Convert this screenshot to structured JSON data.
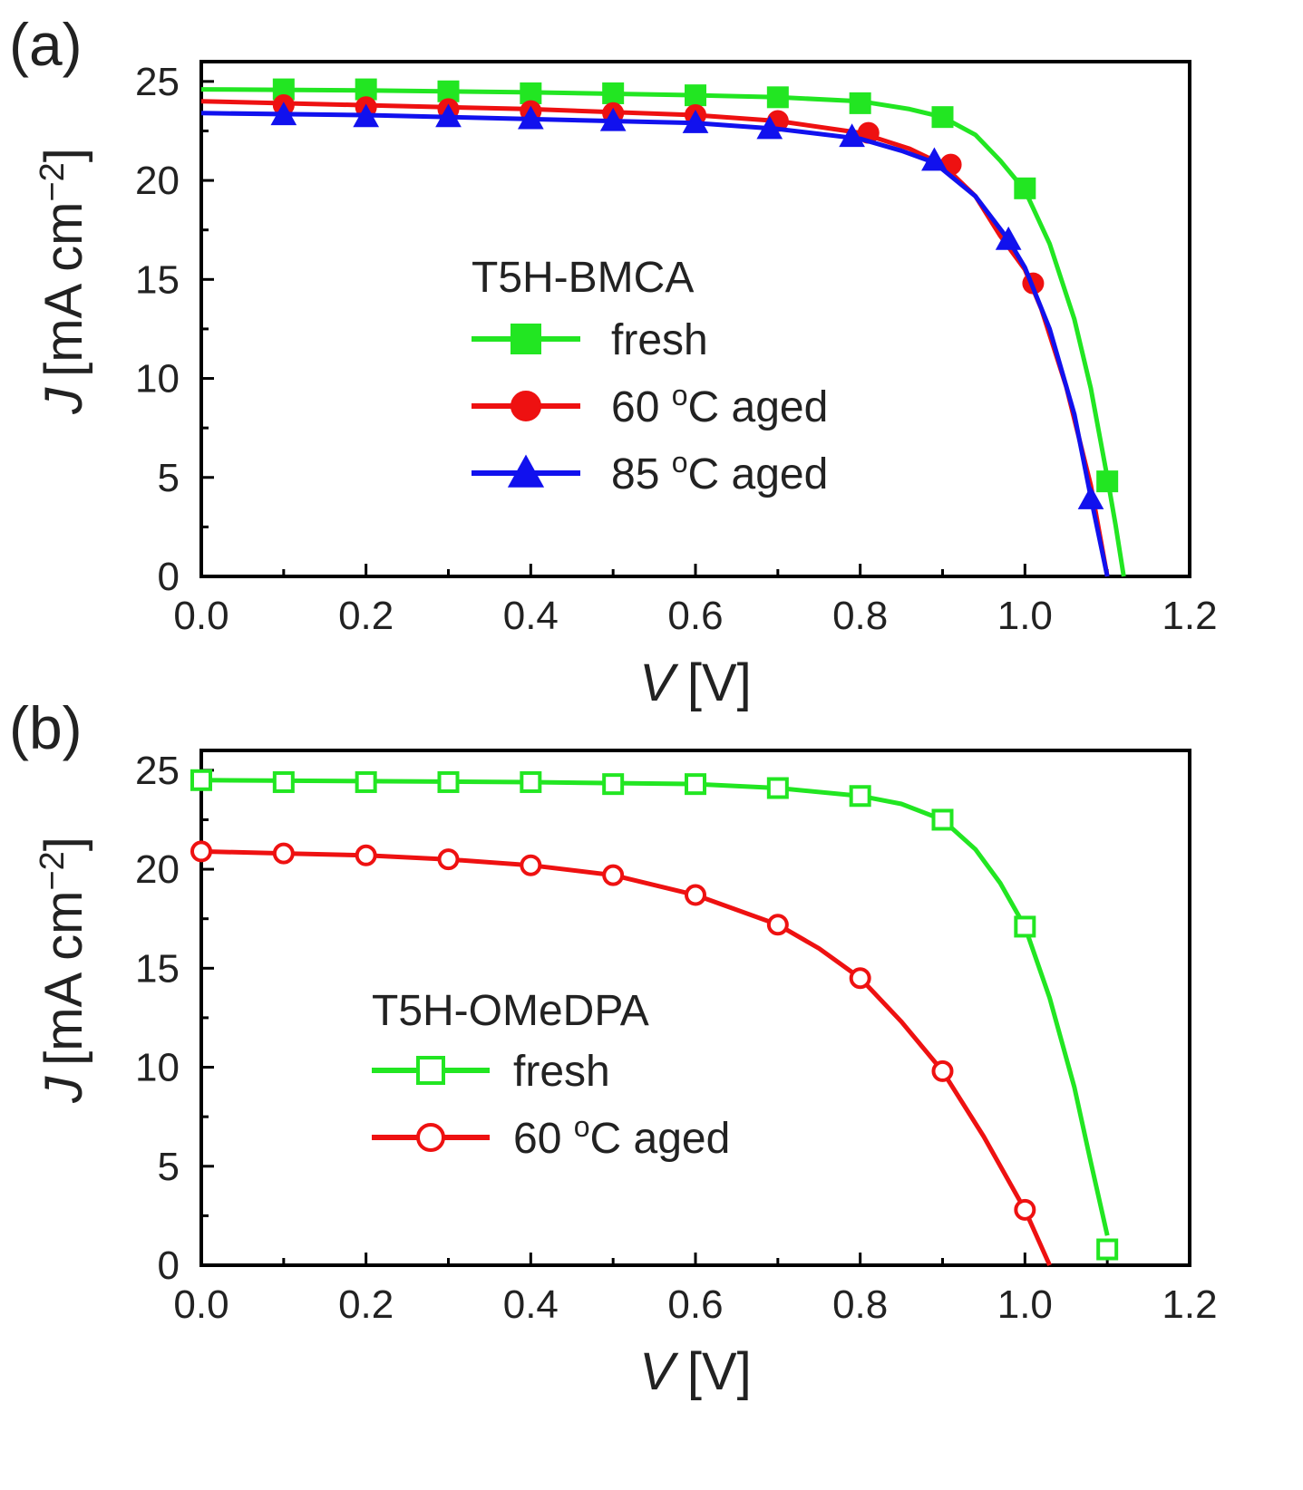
{
  "colors": {
    "fresh": "#22e622",
    "aged60": "#ee1111",
    "aged85": "#1111ee",
    "axis": "#000000"
  },
  "chart_data": [
    {
      "type": "line",
      "panel_label": "(a)",
      "xlabel_symbol": "V",
      "xlabel_unit": "[V]",
      "ylabel_symbol": "J",
      "ylabel_unit": "[mA cm",
      "ylabel_sup": "−2",
      "ylabel_close": "]",
      "xlim": [
        0.0,
        1.2
      ],
      "ylim": [
        0,
        26
      ],
      "x_ticks": [
        "0.0",
        "0.2",
        "0.4",
        "0.6",
        "0.8",
        "1.0",
        "1.2"
      ],
      "y_ticks": [
        "0",
        "5",
        "10",
        "15",
        "20",
        "25"
      ],
      "legend_title": "T5H-BMCA",
      "series": [
        {
          "name": "fresh",
          "name_main": "fresh",
          "name_sup": "",
          "name_rest": "",
          "color_key": "fresh",
          "marker": "square",
          "filled": true,
          "curve": [
            [
              0,
              24.6
            ],
            [
              0.2,
              24.55
            ],
            [
              0.4,
              24.45
            ],
            [
              0.6,
              24.3
            ],
            [
              0.7,
              24.2
            ],
            [
              0.8,
              24.0
            ],
            [
              0.86,
              23.6
            ],
            [
              0.9,
              23.2
            ],
            [
              0.94,
              22.3
            ],
            [
              0.97,
              21.0
            ],
            [
              1.0,
              19.5
            ],
            [
              1.03,
              16.8
            ],
            [
              1.06,
              13.0
            ],
            [
              1.08,
              9.5
            ],
            [
              1.1,
              5.0
            ],
            [
              1.11,
              2.6
            ],
            [
              1.12,
              0
            ]
          ],
          "markers": [
            [
              0.1,
              24.6
            ],
            [
              0.2,
              24.6
            ],
            [
              0.3,
              24.5
            ],
            [
              0.4,
              24.4
            ],
            [
              0.5,
              24.4
            ],
            [
              0.6,
              24.3
            ],
            [
              0.7,
              24.2
            ],
            [
              0.8,
              23.9
            ],
            [
              0.9,
              23.2
            ],
            [
              1.0,
              19.6
            ],
            [
              1.1,
              4.8
            ]
          ]
        },
        {
          "name": "60 oC aged",
          "name_main": "60 ",
          "name_sup": "o",
          "name_rest": "C aged",
          "color_key": "aged60",
          "marker": "circle",
          "filled": true,
          "curve": [
            [
              0,
              24.0
            ],
            [
              0.2,
              23.8
            ],
            [
              0.4,
              23.6
            ],
            [
              0.6,
              23.3
            ],
            [
              0.7,
              23.0
            ],
            [
              0.8,
              22.4
            ],
            [
              0.86,
              21.6
            ],
            [
              0.9,
              20.8
            ],
            [
              0.94,
              19.2
            ],
            [
              0.97,
              17.2
            ],
            [
              1.0,
              15.5
            ],
            [
              1.02,
              13.5
            ],
            [
              1.05,
              9.6
            ],
            [
              1.08,
              4.6
            ],
            [
              1.1,
              0
            ]
          ],
          "markers": [
            [
              0.1,
              23.8
            ],
            [
              0.2,
              23.7
            ],
            [
              0.3,
              23.6
            ],
            [
              0.4,
              23.5
            ],
            [
              0.5,
              23.4
            ],
            [
              0.6,
              23.3
            ],
            [
              0.7,
              23.0
            ],
            [
              0.81,
              22.4
            ],
            [
              0.91,
              20.8
            ],
            [
              1.01,
              14.8
            ]
          ]
        },
        {
          "name": "85 oC aged",
          "name_main": "85 ",
          "name_sup": "o",
          "name_rest": "C aged",
          "color_key": "aged85",
          "marker": "triangle",
          "filled": true,
          "curve": [
            [
              0,
              23.4
            ],
            [
              0.2,
              23.3
            ],
            [
              0.4,
              23.1
            ],
            [
              0.6,
              22.9
            ],
            [
              0.7,
              22.6
            ],
            [
              0.8,
              22.1
            ],
            [
              0.85,
              21.5
            ],
            [
              0.89,
              20.9
            ],
            [
              0.94,
              19.2
            ],
            [
              0.98,
              17.0
            ],
            [
              1.0,
              15.6
            ],
            [
              1.03,
              12.5
            ],
            [
              1.06,
              8.2
            ],
            [
              1.08,
              4.0
            ],
            [
              1.1,
              0
            ]
          ],
          "markers": [
            [
              0.1,
              23.3
            ],
            [
              0.2,
              23.2
            ],
            [
              0.3,
              23.2
            ],
            [
              0.4,
              23.1
            ],
            [
              0.5,
              23.0
            ],
            [
              0.6,
              22.9
            ],
            [
              0.69,
              22.6
            ],
            [
              0.79,
              22.2
            ],
            [
              0.89,
              21.0
            ],
            [
              0.98,
              17.0
            ],
            [
              1.08,
              3.9
            ]
          ]
        }
      ]
    },
    {
      "type": "line",
      "panel_label": "(b)",
      "xlabel_symbol": "V",
      "xlabel_unit": "[V]",
      "ylabel_symbol": "J",
      "ylabel_unit": "[mA cm",
      "ylabel_sup": "−2",
      "ylabel_close": "]",
      "xlim": [
        0.0,
        1.2
      ],
      "ylim": [
        0,
        26
      ],
      "x_ticks": [
        "0.0",
        "0.2",
        "0.4",
        "0.6",
        "0.8",
        "1.0",
        "1.2"
      ],
      "y_ticks": [
        "0",
        "5",
        "10",
        "15",
        "20",
        "25"
      ],
      "legend_title": "T5H-OMeDPA",
      "series": [
        {
          "name": "fresh",
          "name_main": "fresh",
          "name_sup": "",
          "name_rest": "",
          "color_key": "fresh",
          "marker": "square",
          "filled": false,
          "curve": [
            [
              0,
              24.5
            ],
            [
              0.2,
              24.45
            ],
            [
              0.4,
              24.4
            ],
            [
              0.6,
              24.3
            ],
            [
              0.7,
              24.1
            ],
            [
              0.8,
              23.7
            ],
            [
              0.85,
              23.3
            ],
            [
              0.9,
              22.5
            ],
            [
              0.94,
              21.0
            ],
            [
              0.97,
              19.3
            ],
            [
              1.0,
              17.1
            ],
            [
              1.03,
              13.5
            ],
            [
              1.06,
              9.0
            ],
            [
              1.08,
              5.2
            ],
            [
              1.1,
              1.5
            ]
          ],
          "markers": [
            [
              0.0,
              24.5
            ],
            [
              0.1,
              24.4
            ],
            [
              0.2,
              24.4
            ],
            [
              0.3,
              24.4
            ],
            [
              0.4,
              24.4
            ],
            [
              0.5,
              24.3
            ],
            [
              0.6,
              24.3
            ],
            [
              0.7,
              24.1
            ],
            [
              0.8,
              23.7
            ],
            [
              0.9,
              22.5
            ],
            [
              1.0,
              17.1
            ],
            [
              1.1,
              0.8
            ]
          ]
        },
        {
          "name": "60 oC aged",
          "name_main": "60 ",
          "name_sup": "o",
          "name_rest": "C aged",
          "color_key": "aged60",
          "marker": "circle",
          "filled": false,
          "curve": [
            [
              0,
              20.9
            ],
            [
              0.1,
              20.8
            ],
            [
              0.2,
              20.7
            ],
            [
              0.3,
              20.5
            ],
            [
              0.4,
              20.2
            ],
            [
              0.5,
              19.7
            ],
            [
              0.6,
              18.7
            ],
            [
              0.7,
              17.2
            ],
            [
              0.75,
              16.0
            ],
            [
              0.8,
              14.5
            ],
            [
              0.85,
              12.3
            ],
            [
              0.9,
              9.8
            ],
            [
              0.95,
              6.5
            ],
            [
              1.0,
              2.8
            ],
            [
              1.03,
              0
            ]
          ],
          "markers": [
            [
              0.0,
              20.9
            ],
            [
              0.1,
              20.8
            ],
            [
              0.2,
              20.7
            ],
            [
              0.3,
              20.5
            ],
            [
              0.4,
              20.2
            ],
            [
              0.5,
              19.7
            ],
            [
              0.6,
              18.7
            ],
            [
              0.7,
              17.2
            ],
            [
              0.8,
              14.5
            ],
            [
              0.9,
              9.8
            ],
            [
              1.0,
              2.8
            ]
          ]
        }
      ]
    }
  ]
}
